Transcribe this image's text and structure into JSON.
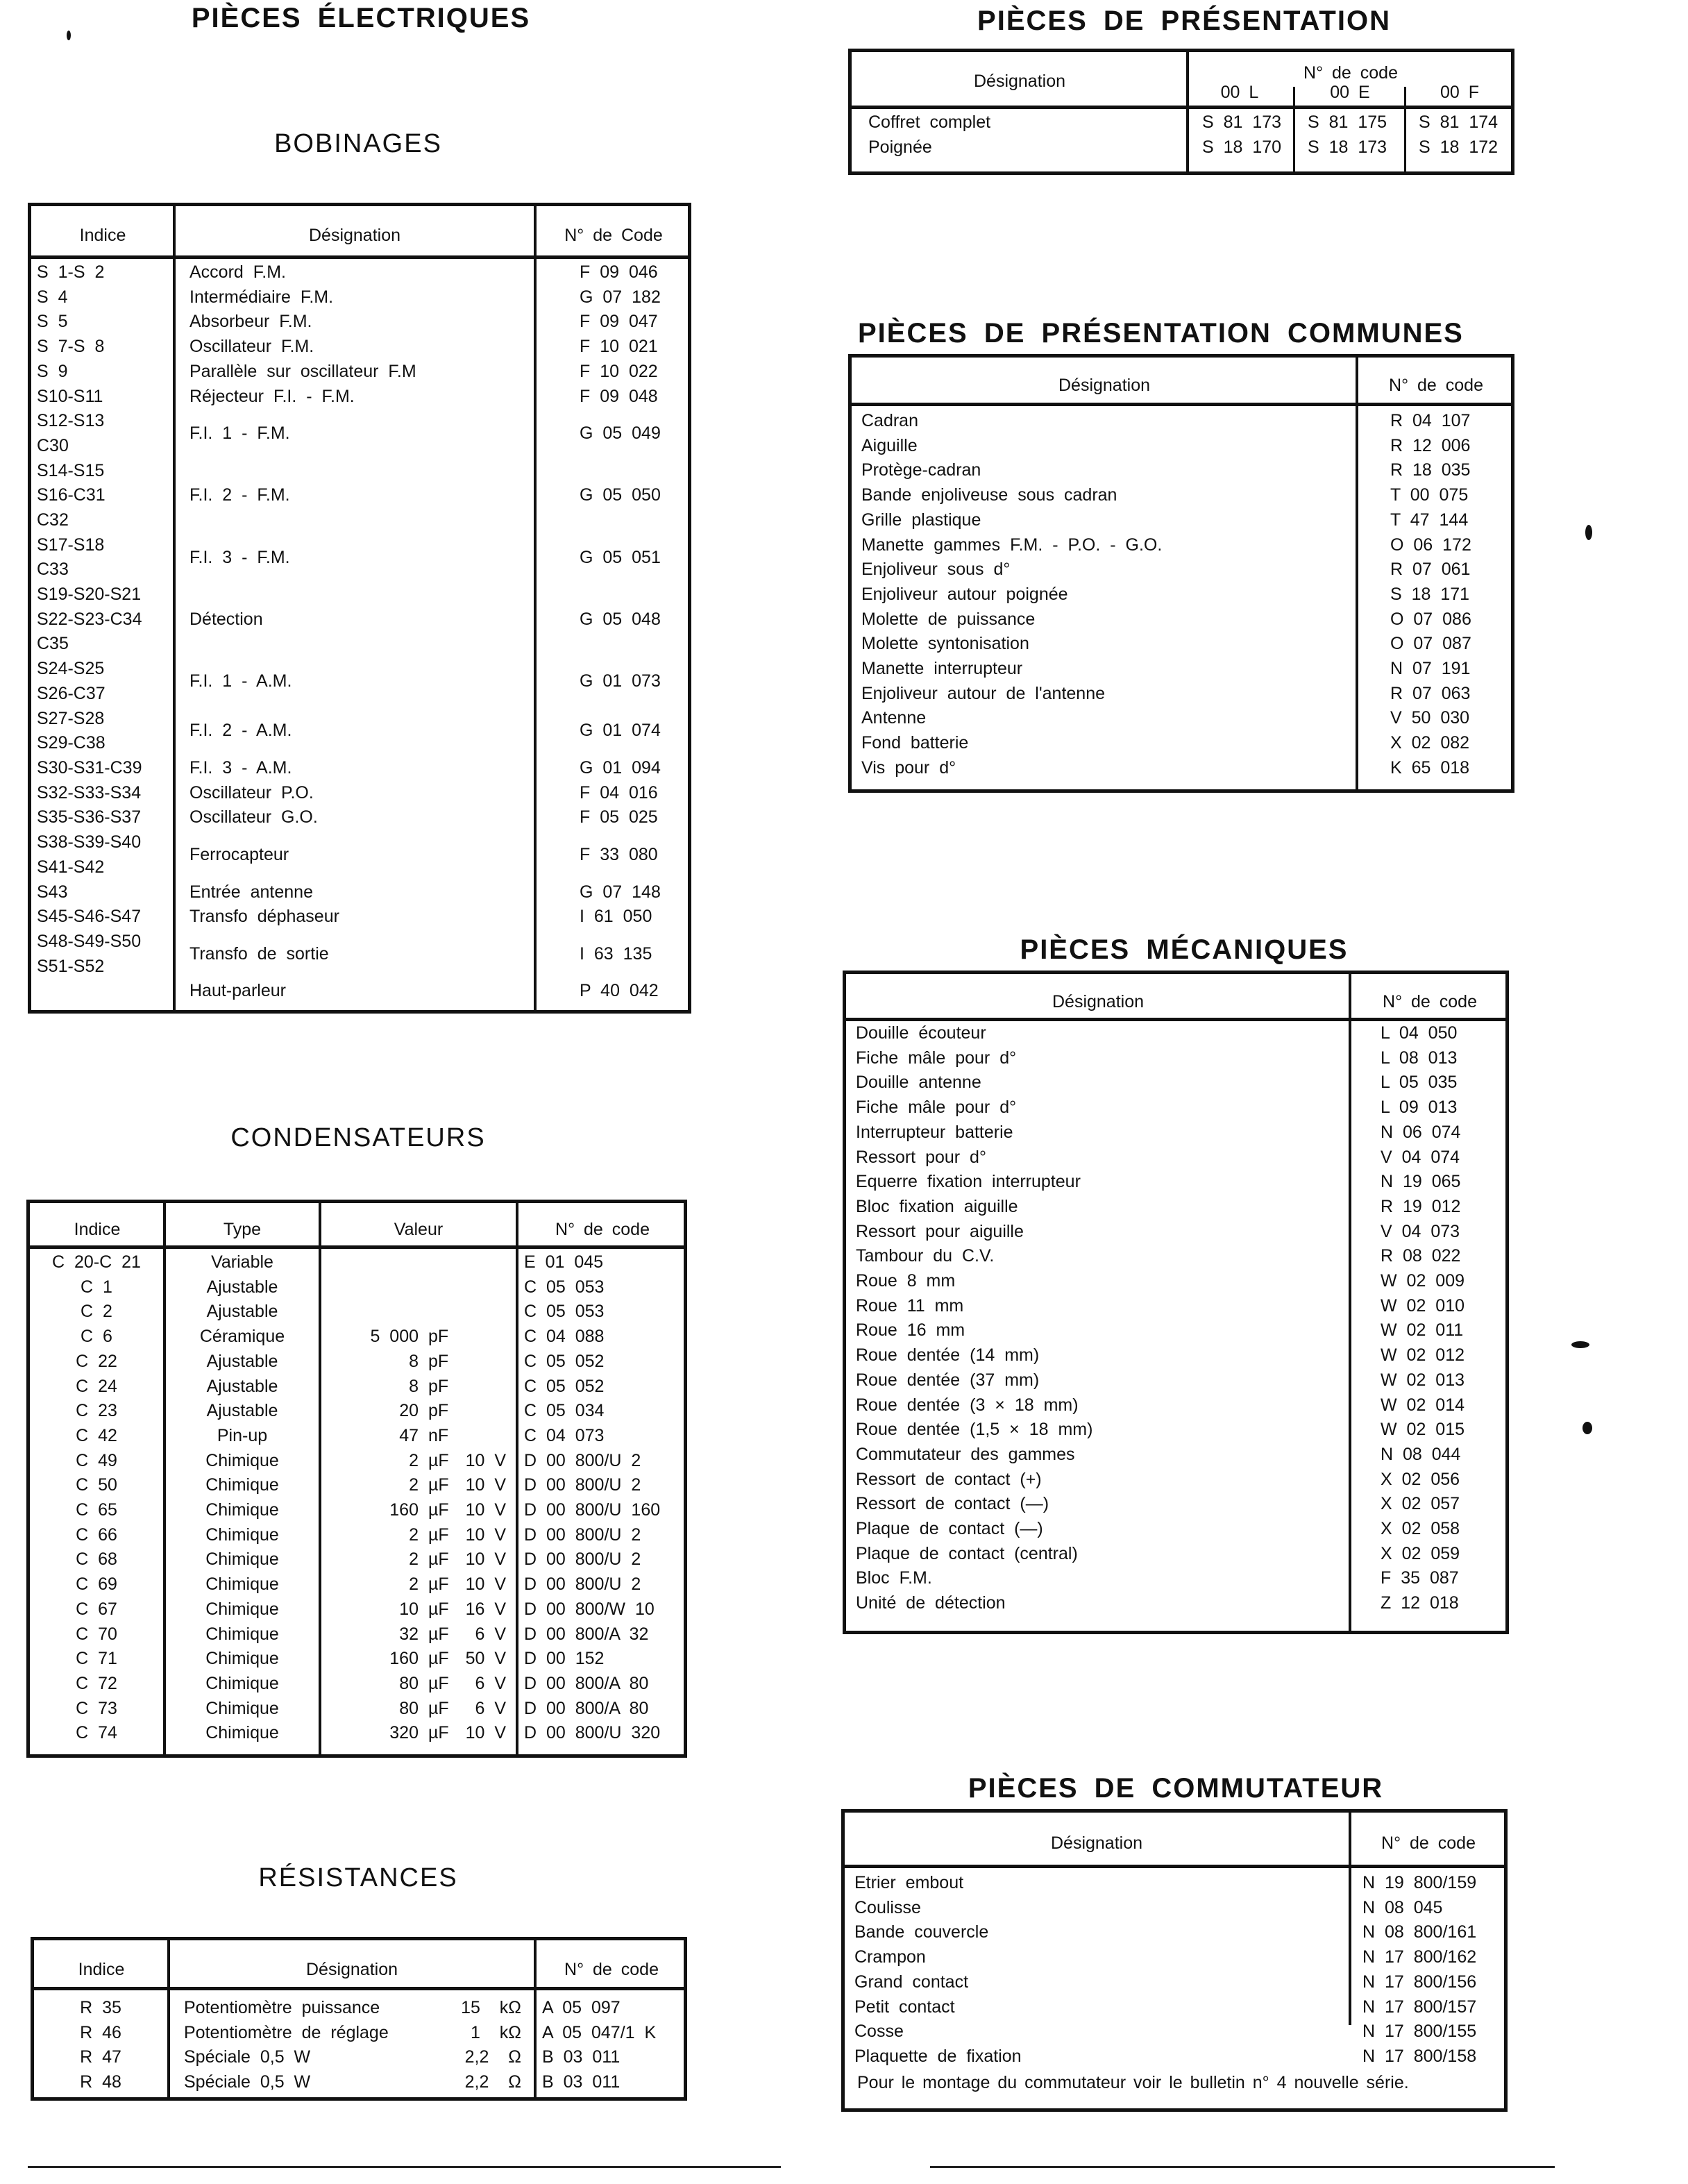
{
  "left": {
    "title": "PIÈCES ÉLECTRIQUES",
    "bobinages": {
      "title": "BOBINAGES",
      "headers": [
        "Indice",
        "Désignation",
        "N° de Code"
      ],
      "rows": [
        {
          "indices": [
            "S 1-S 2"
          ],
          "designation": "Accord F.M.",
          "code": "F 09 046"
        },
        {
          "indices": [
            "S 4"
          ],
          "designation": "Intermédiaire F.M.",
          "code": "G 07 182"
        },
        {
          "indices": [
            "S 5"
          ],
          "designation": "Absorbeur F.M.",
          "code": "F 09 047"
        },
        {
          "indices": [
            "S 7-S 8"
          ],
          "designation": "Oscillateur F.M.",
          "code": "F 10 021"
        },
        {
          "indices": [
            "S 9"
          ],
          "designation": "Parallèle sur oscillateur F.M",
          "code": "F 10 022"
        },
        {
          "indices": [
            "S10-S11"
          ],
          "designation": "Réjecteur F.I. - F.M.",
          "code": "F 09 048"
        },
        {
          "indices": [
            "S12-S13",
            "C30"
          ],
          "designation": "F.I. 1 - F.M.",
          "code": "G 05 049"
        },
        {
          "indices": [
            "S14-S15",
            "S16-C31",
            "C32"
          ],
          "designation": "F.I. 2 - F.M.",
          "code": "G 05 050"
        },
        {
          "indices": [
            "S17-S18",
            "C33"
          ],
          "designation": "F.I. 3 - F.M.",
          "code": "G 05 051"
        },
        {
          "indices": [
            "S19-S20-S21",
            "S22-S23-C34",
            "C35"
          ],
          "designation": "Détection",
          "code": "G 05 048"
        },
        {
          "indices": [
            "S24-S25",
            "S26-C37"
          ],
          "designation": "F.I. 1 - A.M.",
          "code": "G 01 073"
        },
        {
          "indices": [
            "S27-S28",
            "S29-C38"
          ],
          "designation": "F.I. 2 - A.M.",
          "code": "G 01 074"
        },
        {
          "indices": [
            "S30-S31-C39"
          ],
          "designation": "F.I. 3 - A.M.",
          "code": "G 01 094"
        },
        {
          "indices": [
            "S32-S33-S34"
          ],
          "designation": "Oscillateur P.O.",
          "code": "F 04 016"
        },
        {
          "indices": [
            "S35-S36-S37"
          ],
          "designation": "Oscillateur G.O.",
          "code": "F 05 025"
        },
        {
          "indices": [
            "S38-S39-S40",
            "S41-S42"
          ],
          "designation": "Ferrocapteur",
          "code": "F 33 080"
        },
        {
          "indices": [
            "S43"
          ],
          "designation": "Entrée antenne",
          "code": "G 07 148"
        },
        {
          "indices": [
            "S45-S46-S47"
          ],
          "designation": "Transfo déphaseur",
          "code": "I 61 050"
        },
        {
          "indices": [
            "S48-S49-S50",
            "S51-S52"
          ],
          "designation": "Transfo de sortie",
          "code": "I 63 135"
        },
        {
          "indices": [
            ""
          ],
          "designation": "Haut-parleur",
          "code": "P 40 042"
        }
      ]
    },
    "condensateurs": {
      "title": "CONDENSATEURS",
      "headers": [
        "Indice",
        "Type",
        "Valeur",
        "N° de code"
      ],
      "rows": [
        {
          "indice": "C 20-C 21",
          "type": "Variable",
          "num": "",
          "unit": "",
          "volt": "",
          "code": "E 01 045"
        },
        {
          "indice": "C 1",
          "type": "Ajustable",
          "num": "",
          "unit": "",
          "volt": "",
          "code": "C 05 053"
        },
        {
          "indice": "C 2",
          "type": "Ajustable",
          "num": "",
          "unit": "",
          "volt": "",
          "code": "C 05 053"
        },
        {
          "indice": "C 6",
          "type": "Céramique",
          "num": "5 000",
          "unit": "pF",
          "volt": "",
          "code": "C 04 088"
        },
        {
          "indice": "C 22",
          "type": "Ajustable",
          "num": "8",
          "unit": "pF",
          "volt": "",
          "code": "C 05 052"
        },
        {
          "indice": "C 24",
          "type": "Ajustable",
          "num": "8",
          "unit": "pF",
          "volt": "",
          "code": "C 05 052"
        },
        {
          "indice": "C 23",
          "type": "Ajustable",
          "num": "20",
          "unit": "pF",
          "volt": "",
          "code": "C 05 034"
        },
        {
          "indice": "C 42",
          "type": "Pin-up",
          "num": "47",
          "unit": "nF",
          "volt": "",
          "code": "C 04 073"
        },
        {
          "indice": "C 49",
          "type": "Chimique",
          "num": "2",
          "unit": "µF",
          "volt": "10 V",
          "code": "D 00 800/U 2"
        },
        {
          "indice": "C 50",
          "type": "Chimique",
          "num": "2",
          "unit": "µF",
          "volt": "10 V",
          "code": "D 00 800/U 2"
        },
        {
          "indice": "C 65",
          "type": "Chimique",
          "num": "160",
          "unit": "µF",
          "volt": "10 V",
          "code": "D 00 800/U 160"
        },
        {
          "indice": "C 66",
          "type": "Chimique",
          "num": "2",
          "unit": "µF",
          "volt": "10 V",
          "code": "D 00 800/U 2"
        },
        {
          "indice": "C 68",
          "type": "Chimique",
          "num": "2",
          "unit": "µF",
          "volt": "10 V",
          "code": "D 00 800/U 2"
        },
        {
          "indice": "C 69",
          "type": "Chimique",
          "num": "2",
          "unit": "µF",
          "volt": "10 V",
          "code": "D 00 800/U 2"
        },
        {
          "indice": "C 67",
          "type": "Chimique",
          "num": "10",
          "unit": "µF",
          "volt": "16 V",
          "code": "D 00 800/W 10"
        },
        {
          "indice": "C 70",
          "type": "Chimique",
          "num": "32",
          "unit": "µF",
          "volt": "6 V",
          "code": "D 00 800/A 32"
        },
        {
          "indice": "C 71",
          "type": "Chimique",
          "num": "160",
          "unit": "µF",
          "volt": "50 V",
          "code": "D 00 152"
        },
        {
          "indice": "C 72",
          "type": "Chimique",
          "num": "80",
          "unit": "µF",
          "volt": "6 V",
          "code": "D 00 800/A 80"
        },
        {
          "indice": "C 73",
          "type": "Chimique",
          "num": "80",
          "unit": "µF",
          "volt": "6 V",
          "code": "D 00 800/A 80"
        },
        {
          "indice": "C 74",
          "type": "Chimique",
          "num": "320",
          "unit": "µF",
          "volt": "10 V",
          "code": "D 00 800/U 320"
        }
      ]
    },
    "resistances": {
      "title": "RÉSISTANCES",
      "headers": [
        "Indice",
        "Désignation",
        "N° de code"
      ],
      "rows": [
        {
          "indice": "R 35",
          "designation": "Potentiomètre puissance",
          "value": "15  kΩ",
          "code": "A 05 097"
        },
        {
          "indice": "R 46",
          "designation": "Potentiomètre de réglage",
          "value": "1  kΩ",
          "code": "A 05 047/1 K"
        },
        {
          "indice": "R 47",
          "designation": "Spéciale 0,5 W",
          "value": "2,2  Ω",
          "code": "B 03 011"
        },
        {
          "indice": "R 48",
          "designation": "Spéciale 0,5 W",
          "value": "2,2  Ω",
          "code": "B 03 011"
        }
      ]
    }
  },
  "right": {
    "presentation": {
      "title": "PIÈCES DE PRÉSENTATION",
      "headers": {
        "designation": "Désignation",
        "code_group": "N° de code",
        "variants": [
          "00 L",
          "00 E",
          "00 F"
        ]
      },
      "rows": [
        {
          "designation": "Coffret complet",
          "codes": [
            "S 81 173",
            "S 81 175",
            "S 81 174"
          ]
        },
        {
          "designation": "Poignée",
          "codes": [
            "S 18 170",
            "S 18 173",
            "S 18 172"
          ]
        }
      ]
    },
    "communes": {
      "title": "PIÈCES DE PRÉSENTATION COMMUNES",
      "headers": [
        "Désignation",
        "N° de code"
      ],
      "rows": [
        {
          "designation": "Cadran",
          "code": "R 04 107"
        },
        {
          "designation": "Aiguille",
          "code": "R 12 006"
        },
        {
          "designation": "Protège-cadran",
          "code": "R 18 035"
        },
        {
          "designation": "Bande enjoliveuse sous cadran",
          "code": "T 00 075"
        },
        {
          "designation": "Grille plastique",
          "code": "T 47 144"
        },
        {
          "designation": "Manette gammes F.M. - P.O. - G.O.",
          "code": "O 06 172"
        },
        {
          "designation": "Enjoliveur sous d°",
          "code": "R 07 061"
        },
        {
          "designation": "Enjoliveur autour poignée",
          "code": "S 18 171"
        },
        {
          "designation": "Molette de puissance",
          "code": "O 07 086"
        },
        {
          "designation": "Molette syntonisation",
          "code": "O 07 087"
        },
        {
          "designation": "Manette interrupteur",
          "code": "N 07 191"
        },
        {
          "designation": "Enjoliveur autour de l'antenne",
          "code": "R 07 063"
        },
        {
          "designation": "Antenne",
          "code": "V 50 030"
        },
        {
          "designation": "Fond batterie",
          "code": "X 02 082"
        },
        {
          "designation": "Vis pour d°",
          "code": "K 65 018"
        }
      ]
    },
    "mecaniques": {
      "title": "PIÈCES MÉCANIQUES",
      "headers": [
        "Désignation",
        "N° de code"
      ],
      "rows": [
        {
          "designation": "Douille écouteur",
          "code": "L 04 050"
        },
        {
          "designation": "Fiche mâle pour d°",
          "code": "L 08 013"
        },
        {
          "designation": "Douille antenne",
          "code": "L 05 035"
        },
        {
          "designation": "Fiche mâle pour d°",
          "code": "L 09 013"
        },
        {
          "designation": "Interrupteur batterie",
          "code": "N 06 074"
        },
        {
          "designation": "Ressort pour d°",
          "code": "V 04 074"
        },
        {
          "designation": "Equerre fixation interrupteur",
          "code": "N 19 065"
        },
        {
          "designation": "Bloc fixation aiguille",
          "code": "R 19 012"
        },
        {
          "designation": "Ressort pour aiguille",
          "code": "V 04 073"
        },
        {
          "designation": "Tambour du C.V.",
          "code": "R 08 022"
        },
        {
          "designation": "Roue 8 mm",
          "code": "W 02 009"
        },
        {
          "designation": "Roue 11 mm",
          "code": "W 02 010"
        },
        {
          "designation": "Roue 16 mm",
          "code": "W 02 011"
        },
        {
          "designation": "Roue dentée (14 mm)",
          "code": "W 02 012"
        },
        {
          "designation": "Roue dentée (37 mm)",
          "code": "W 02 013"
        },
        {
          "designation": "Roue dentée (3 × 18 mm)",
          "code": "W 02 014"
        },
        {
          "designation": "Roue dentée (1,5 × 18 mm)",
          "code": "W 02 015"
        },
        {
          "designation": "Commutateur des gammes",
          "code": "N 08 044"
        },
        {
          "designation": "Ressort de contact (+)",
          "code": "X 02 056"
        },
        {
          "designation": "Ressort de contact (—)",
          "code": "X 02 057"
        },
        {
          "designation": "Plaque de contact (—)",
          "code": "X 02 058"
        },
        {
          "designation": "Plaque de contact (central)",
          "code": "X 02 059"
        },
        {
          "designation": "Bloc F.M.",
          "code": "F 35 087"
        },
        {
          "designation": "Unité de détection",
          "code": "Z 12 018"
        }
      ]
    },
    "commutateur": {
      "title": "PIÈCES DE COMMUTATEUR",
      "headers": [
        "Désignation",
        "N° de code"
      ],
      "rows": [
        {
          "designation": "Etrier embout",
          "code": "N 19 800/159"
        },
        {
          "designation": "Coulisse",
          "code": "N 08 045"
        },
        {
          "designation": "Bande couvercle",
          "code": "N 08 800/161"
        },
        {
          "designation": "Crampon",
          "code": "N 17 800/162"
        },
        {
          "designation": "Grand contact",
          "code": "N 17 800/156"
        },
        {
          "designation": "Petit contact",
          "code": "N 17 800/157"
        },
        {
          "designation": "Cosse",
          "code": "N 17 800/155"
        },
        {
          "designation": "Plaquette de fixation",
          "code": "N 17 800/158"
        }
      ],
      "note": "Pour le montage du commutateur voir le bulletin n° 4 nouvelle série."
    }
  }
}
